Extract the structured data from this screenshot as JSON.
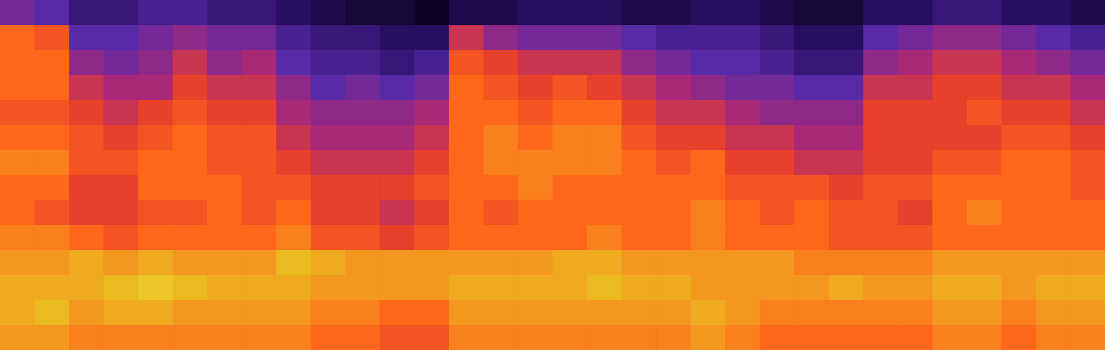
{
  "chart_data": {
    "type": "heatmap",
    "tick_labels": false,
    "zlim": [
      0,
      100
    ],
    "cells": [
      [
        40,
        70,
        70,
        70,
        65,
        70,
        75,
        70,
        70,
        75,
        80,
        85,
        85,
        80
      ],
      [
        35,
        65,
        70,
        70,
        65,
        70,
        75,
        70,
        65,
        75,
        80,
        85,
        90,
        80
      ],
      [
        25,
        35,
        45,
        55,
        60,
        65,
        65,
        60,
        60,
        70,
        85,
        85,
        80,
        75
      ],
      [
        25,
        35,
        40,
        50,
        55,
        60,
        65,
        60,
        60,
        65,
        80,
        90,
        85,
        75
      ],
      [
        30,
        40,
        45,
        50,
        60,
        65,
        70,
        70,
        65,
        70,
        85,
        95,
        85,
        75
      ],
      [
        30,
        45,
        55,
        60,
        65,
        70,
        70,
        70,
        65,
        70,
        80,
        90,
        80,
        75
      ],
      [
        25,
        40,
        45,
        55,
        60,
        65,
        65,
        70,
        70,
        70,
        80,
        85,
        80,
        75
      ],
      [
        25,
        40,
        50,
        55,
        60,
        65,
        65,
        65,
        65,
        70,
        80,
        85,
        80,
        75
      ],
      [
        20,
        30,
        35,
        45,
        50,
        55,
        60,
        65,
        70,
        75,
        90,
        85,
        80,
        75
      ],
      [
        15,
        25,
        30,
        35,
        45,
        50,
        55,
        60,
        60,
        65,
        85,
        80,
        75,
        70
      ],
      [
        10,
        25,
        30,
        40,
        45,
        50,
        55,
        60,
        60,
        65,
        80,
        80,
        75,
        70
      ],
      [
        10,
        20,
        25,
        35,
        45,
        50,
        55,
        60,
        55,
        60,
        80,
        80,
        70,
        65
      ],
      [
        5,
        20,
        30,
        40,
        50,
        55,
        60,
        65,
        60,
        65,
        80,
        80,
        70,
        65
      ],
      [
        15,
        55,
        65,
        70,
        70,
        70,
        70,
        70,
        70,
        70,
        80,
        85,
        80,
        75
      ],
      [
        15,
        45,
        60,
        65,
        70,
        75,
        75,
        70,
        65,
        70,
        80,
        85,
        80,
        75
      ],
      [
        20,
        40,
        55,
        60,
        65,
        70,
        75,
        75,
        70,
        70,
        80,
        85,
        80,
        75
      ],
      [
        20,
        40,
        55,
        65,
        70,
        75,
        75,
        70,
        70,
        70,
        85,
        85,
        80,
        75
      ],
      [
        20,
        40,
        55,
        60,
        70,
        75,
        75,
        70,
        70,
        75,
        85,
        90,
        80,
        75
      ],
      [
        15,
        35,
        45,
        55,
        60,
        65,
        70,
        70,
        70,
        70,
        80,
        85,
        80,
        75
      ],
      [
        15,
        30,
        40,
        50,
        55,
        60,
        65,
        70,
        70,
        70,
        80,
        85,
        80,
        75
      ],
      [
        20,
        30,
        35,
        45,
        55,
        60,
        70,
        70,
        75,
        75,
        80,
        80,
        85,
        80
      ],
      [
        20,
        30,
        35,
        40,
        50,
        55,
        60,
        65,
        70,
        70,
        80,
        80,
        80,
        75
      ],
      [
        15,
        25,
        30,
        40,
        45,
        55,
        60,
        65,
        65,
        70,
        80,
        80,
        75,
        70
      ],
      [
        10,
        20,
        25,
        35,
        45,
        50,
        55,
        65,
        70,
        70,
        75,
        80,
        75,
        70
      ],
      [
        10,
        20,
        25,
        35,
        45,
        50,
        55,
        60,
        65,
        65,
        75,
        85,
        75,
        70
      ],
      [
        20,
        35,
        45,
        55,
        60,
        60,
        60,
        65,
        65,
        65,
        75,
        80,
        75,
        70
      ],
      [
        20,
        40,
        50,
        55,
        60,
        60,
        60,
        65,
        60,
        65,
        75,
        80,
        75,
        70
      ],
      [
        25,
        45,
        55,
        60,
        60,
        60,
        65,
        70,
        70,
        70,
        80,
        85,
        80,
        75
      ],
      [
        25,
        45,
        55,
        60,
        65,
        60,
        65,
        70,
        75,
        70,
        80,
        85,
        80,
        75
      ],
      [
        20,
        40,
        50,
        55,
        60,
        65,
        70,
        70,
        70,
        70,
        80,
        80,
        75,
        70
      ],
      [
        20,
        35,
        45,
        55,
        60,
        65,
        70,
        70,
        70,
        70,
        80,
        85,
        80,
        75
      ],
      [
        15,
        30,
        40,
        50,
        55,
        60,
        65,
        65,
        70,
        70,
        80,
        85,
        80,
        75
      ]
    ]
  }
}
